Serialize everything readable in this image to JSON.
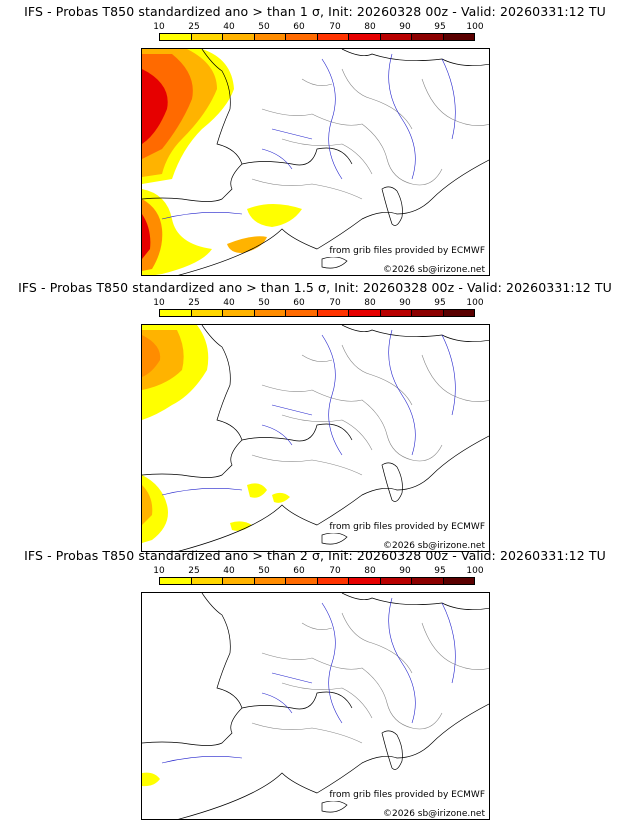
{
  "legend": {
    "labels": [
      "10",
      "25",
      "40",
      "50",
      "60",
      "70",
      "80",
      "90",
      "95",
      "100"
    ],
    "colors": [
      "#ffff00",
      "#ffd700",
      "#ffb300",
      "#ff8c00",
      "#ff6a00",
      "#ff3300",
      "#e60000",
      "#b80000",
      "#8b0000",
      "#5a0000"
    ]
  },
  "panels": [
    {
      "title": "IFS - Probas T850  standardized ano > than 1 σ, Init: 20260328 00z - Valid: 20260331:12 TU",
      "source": "from grib files provided by ECMWF",
      "copyright": "©2026 sb@irizone.net"
    },
    {
      "title": "IFS - Probas T850  standardized ano > than 1.5 σ, Init: 20260328 00z - Valid: 20260331:12 TU",
      "source": "from grib files provided by ECMWF",
      "copyright": "©2026 sb@irizone.net"
    },
    {
      "title": "IFS - Probas T850  standardized ano > than 2 σ, Init: 20260328 00z - Valid: 20260331:12 TU",
      "source": "from grib files provided by ECMWF",
      "copyright": "©2026 sb@irizone.net"
    }
  ]
}
